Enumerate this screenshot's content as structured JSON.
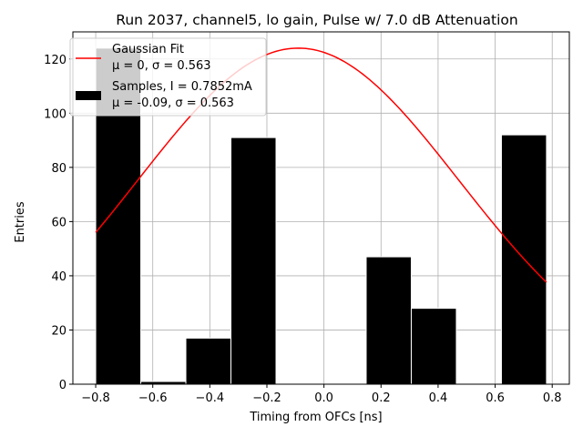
{
  "chart_data": {
    "type": "bar",
    "title": "Run 2037, channel5, lo gain, Pulse w/ 7.0 dB Attenuation",
    "xlabel": "Timing from OFCs [ns]",
    "ylabel": "Entries",
    "xlim": [
      -0.88,
      0.86
    ],
    "ylim": [
      0,
      130
    ],
    "xticks": [
      -0.8,
      -0.6,
      -0.4,
      -0.2,
      0.0,
      0.2,
      0.4,
      0.6,
      0.8
    ],
    "xtick_labels": [
      "−0.8",
      "−0.6",
      "−0.4",
      "−0.2",
      "0.0",
      "0.2",
      "0.4",
      "0.6",
      "0.8"
    ],
    "yticks": [
      0,
      20,
      40,
      60,
      80,
      100,
      120
    ],
    "ytick_labels": [
      "0",
      "20",
      "40",
      "60",
      "80",
      "100",
      "120"
    ],
    "grid": true,
    "legend_position": "top-left",
    "bins": [
      {
        "x0": -0.8,
        "x1": -0.642,
        "value": 124
      },
      {
        "x0": -0.642,
        "x1": -0.484,
        "value": 1
      },
      {
        "x0": -0.484,
        "x1": -0.326,
        "value": 17
      },
      {
        "x0": -0.326,
        "x1": -0.168,
        "value": 91
      },
      {
        "x0": -0.168,
        "x1": -0.01,
        "value": 0
      },
      {
        "x0": -0.01,
        "x1": 0.148,
        "value": 0
      },
      {
        "x0": 0.148,
        "x1": 0.306,
        "value": 47
      },
      {
        "x0": 0.306,
        "x1": 0.464,
        "value": 28
      },
      {
        "x0": 0.464,
        "x1": 0.622,
        "value": 0
      },
      {
        "x0": 0.622,
        "x1": 0.78,
        "value": 92
      }
    ],
    "fit_curve": {
      "amplitude": 124,
      "mu": -0.09,
      "sigma": 0.563,
      "x_start": -0.8,
      "x_end": 0.78
    },
    "colors": {
      "bars": "#000000",
      "bar_edge": "#ffffff",
      "fit": "#ff0000",
      "grid": "#b0b0b0"
    },
    "legend": [
      {
        "kind": "line",
        "line1": "Gaussian Fit",
        "line2": "μ = 0, σ = 0.563"
      },
      {
        "kind": "patch",
        "line1": "Samples, I = 0.7852mA",
        "line2": "μ = -0.09, σ = 0.563"
      }
    ]
  }
}
